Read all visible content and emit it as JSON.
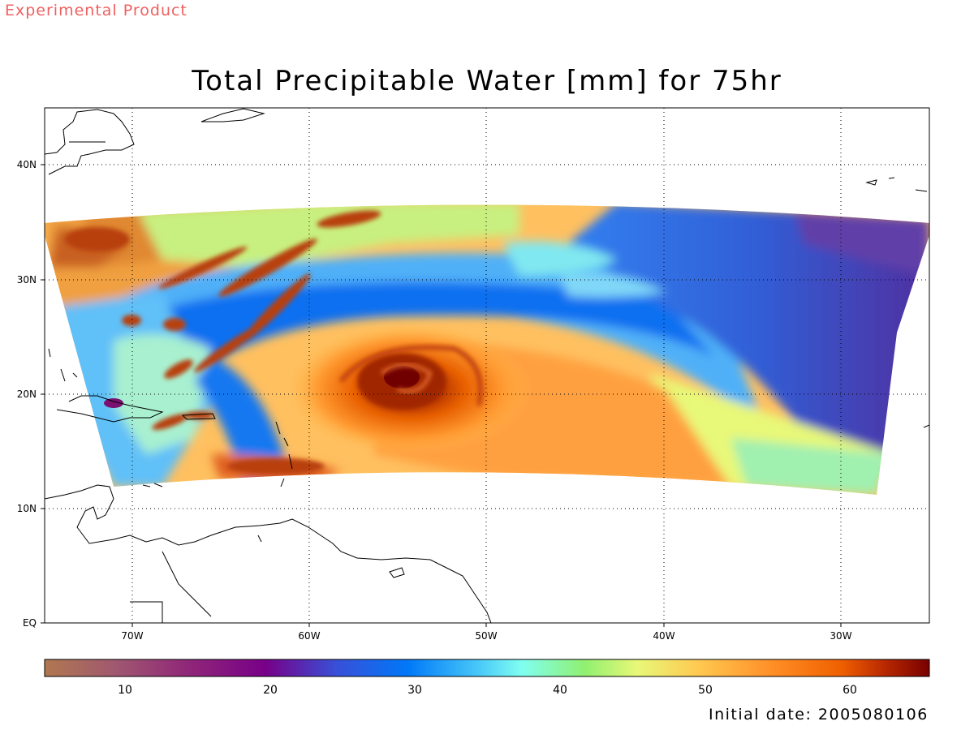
{
  "header": {
    "tag": "Experimental Product",
    "title": "Total Precipitable Water [mm] for 75hr"
  },
  "map": {
    "lat_labels": [
      "40N",
      "30N",
      "20N",
      "10N",
      "EQ"
    ],
    "lon_labels": [
      "70W",
      "60W",
      "50W",
      "40W",
      "30W"
    ],
    "grid_style": "dotted"
  },
  "colorbar": {
    "range": [
      5,
      66
    ],
    "tick_labels": [
      "10",
      "20",
      "30",
      "40",
      "50",
      "60"
    ],
    "stops": [
      {
        "v": 5,
        "c": "#b07850"
      },
      {
        "v": 10,
        "c": "#a05870"
      },
      {
        "v": 15,
        "c": "#902878"
      },
      {
        "v": 20,
        "c": "#780088"
      },
      {
        "v": 25,
        "c": "#3850d8"
      },
      {
        "v": 30,
        "c": "#0078f8"
      },
      {
        "v": 35,
        "c": "#48c8f8"
      },
      {
        "v": 38,
        "c": "#80fff0"
      },
      {
        "v": 42,
        "c": "#90f070"
      },
      {
        "v": 46,
        "c": "#e8f878"
      },
      {
        "v": 50,
        "c": "#ffc850"
      },
      {
        "v": 55,
        "c": "#ff9028"
      },
      {
        "v": 60,
        "c": "#f06000"
      },
      {
        "v": 63,
        "c": "#b82800"
      },
      {
        "v": 66,
        "c": "#780000"
      }
    ]
  },
  "footer": {
    "initial_date": "Initial date: 2005080106"
  }
}
